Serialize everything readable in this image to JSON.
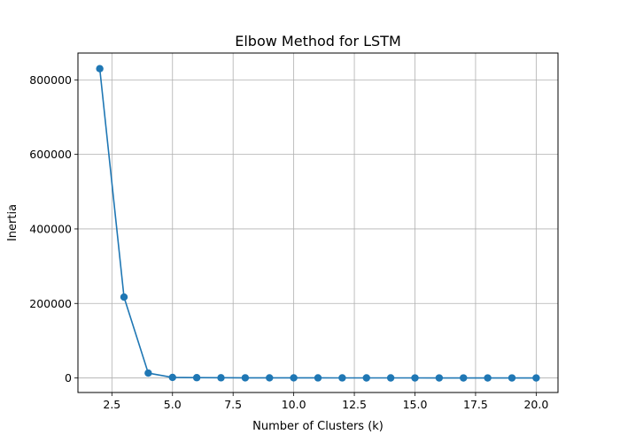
{
  "chart_data": {
    "type": "line",
    "title": "Elbow Method for LSTM",
    "xlabel": "Number of Clusters (k)",
    "ylabel": "Inertia",
    "xlim": [
      1.1,
      20.9
    ],
    "ylim": [
      -39000,
      872000
    ],
    "x_ticks": [
      "2.5",
      "5.0",
      "7.5",
      "10.0",
      "12.5",
      "15.0",
      "17.5",
      "20.0"
    ],
    "y_ticks": [
      "0",
      "200000",
      "400000",
      "600000",
      "800000"
    ],
    "grid": true,
    "line_color": "#1f77b4",
    "series": [
      {
        "name": "",
        "x": [
          2,
          3,
          4,
          5,
          6,
          7,
          8,
          9,
          10,
          11,
          12,
          13,
          14,
          15,
          16,
          17,
          18,
          19,
          20
        ],
        "y": [
          830000,
          217000,
          13000,
          1500,
          800,
          500,
          400,
          300,
          250,
          200,
          180,
          150,
          130,
          110,
          100,
          90,
          80,
          70,
          60
        ]
      }
    ]
  }
}
